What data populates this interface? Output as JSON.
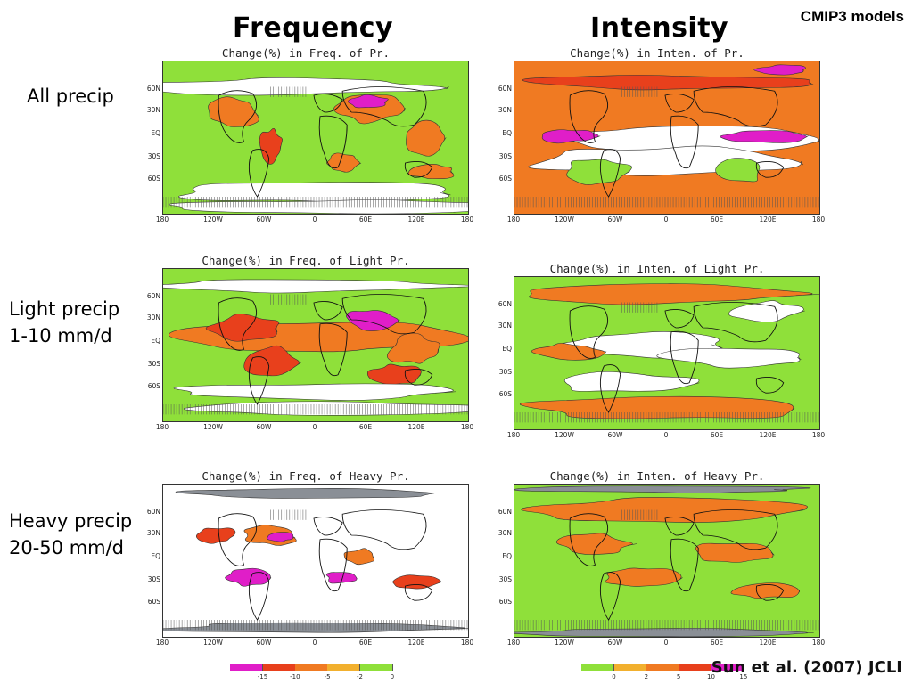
{
  "headers": {
    "frequency": "Frequency",
    "intensity": "Intensity",
    "badge": "CMIP3 models"
  },
  "rows": {
    "all": {
      "line1": "All precip"
    },
    "light": {
      "line1": "Light precip",
      "line2": "1-10 mm/d"
    },
    "heavy": {
      "line1": "Heavy precip",
      "line2": "20-50 mm/d"
    }
  },
  "maps": {
    "freq_all": {
      "title": "Change(%) in Freq. of Pr."
    },
    "int_all": {
      "title": "Change(%) in Inten. of Pr."
    },
    "freq_light": {
      "title": "Change(%) in Freq. of Light Pr."
    },
    "int_light": {
      "title": "Change(%) in Inten. of Light Pr."
    },
    "freq_heavy": {
      "title": "Change(%) in Freq. of Heavy Pr."
    },
    "int_heavy": {
      "title": "Change(%) in Inten. of Heavy Pr."
    }
  },
  "axes": {
    "lat": [
      "60N",
      "30N",
      "EQ",
      "30S",
      "60S"
    ],
    "lon": [
      "180",
      "120W",
      "60W",
      "0",
      "60E",
      "120E",
      "180"
    ]
  },
  "colorbars": {
    "freq": {
      "ticks": [
        "-15",
        "-10",
        "-5",
        "-2",
        "0"
      ],
      "colors": [
        "#e01ec8",
        "#e8401c",
        "#f07a22",
        "#f2b02e",
        "#8fe03a"
      ]
    },
    "int": {
      "ticks": [
        "0",
        "2",
        "5",
        "10",
        "15"
      ],
      "colors": [
        "#8fe03a",
        "#f2b02e",
        "#f07a22",
        "#e8401c",
        "#e01ec8"
      ]
    }
  },
  "colors": {
    "green": "#8fe03a",
    "light_orange": "#f2b02e",
    "orange": "#f07a22",
    "red": "#e8401c",
    "magenta": "#e01ec8",
    "gray": "#8a8f96",
    "white": "#ffffff"
  },
  "citation": "Sun et al. (2007) JCLI"
}
